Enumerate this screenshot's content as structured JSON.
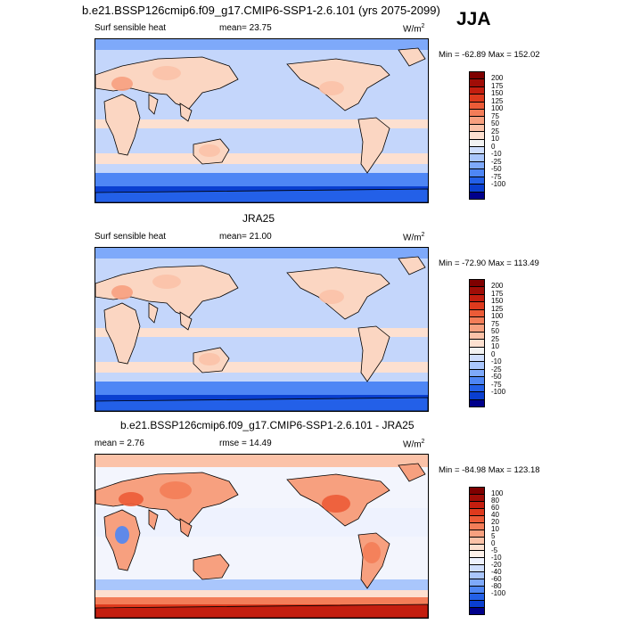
{
  "title": "b.e21.BSSP126cmip6.f09_g17.CMIP6-SSP1-2.6.101 (yrs 2075-2099)",
  "season": "JJA",
  "colors": {
    "main": [
      "#00008b",
      "#0a3fd0",
      "#2360e8",
      "#4e86f5",
      "#7ea9fa",
      "#a9c6fc",
      "#cfdefd",
      "#f2f2f2",
      "#fde0d0",
      "#fbc2a8",
      "#f7a07f",
      "#f37d58",
      "#ec5b37",
      "#de3a1d",
      "#c41e0f",
      "#a00d07",
      "#7f0000"
    ],
    "diff": [
      "#00008b",
      "#0a3fd0",
      "#2360e8",
      "#4e86f5",
      "#7ea9fa",
      "#a9c6fc",
      "#cfdefd",
      "#eef2fe",
      "#fdf1ea",
      "#fde0d0",
      "#fbc2a8",
      "#f7a07f",
      "#f37d58",
      "#ec5b37",
      "#de3a1d",
      "#c41e0f",
      "#a00d07",
      "#7f0000"
    ]
  },
  "chart_data": [
    {
      "type": "heatmap",
      "title": "b.e21.BSSP126cmip6.f09_g17.CMIP6-SSP1-2.6.101 (yrs 2075-2099)",
      "left_label": "Surf sensible heat",
      "center_label": "mean=  23.75",
      "units_text": "W/m",
      "units_sup": "2",
      "minmax": "Min = -62.89 Max = 152.02",
      "levels": [
        "200",
        "175",
        "150",
        "125",
        "100",
        "75",
        "50",
        "25",
        "10",
        "0",
        "-10",
        "-25",
        "-50",
        "-75",
        "-100"
      ]
    },
    {
      "type": "heatmap",
      "title": "JRA25",
      "left_label": "Surf sensible heat",
      "center_label": "mean=  21.00",
      "units_text": "W/m",
      "units_sup": "2",
      "minmax": "Min = -72.90 Max = 113.49",
      "levels": [
        "200",
        "175",
        "150",
        "125",
        "100",
        "75",
        "50",
        "25",
        "10",
        "0",
        "-10",
        "-25",
        "-50",
        "-75",
        "-100"
      ]
    },
    {
      "type": "heatmap",
      "title": "b.e21.BSSP126cmip6.f09_g17.CMIP6-SSP1-2.6.101 - JRA25",
      "left_label": "mean =   2.76",
      "center_label": "rmse =  14.49",
      "units_text": "W/m",
      "units_sup": "2",
      "minmax": "Min = -84.98 Max = 123.18",
      "levels": [
        "100",
        "80",
        "60",
        "40",
        "20",
        "10",
        "5",
        "0",
        "-5",
        "-10",
        "-20",
        "-40",
        "-60",
        "-80",
        "-100"
      ]
    }
  ]
}
